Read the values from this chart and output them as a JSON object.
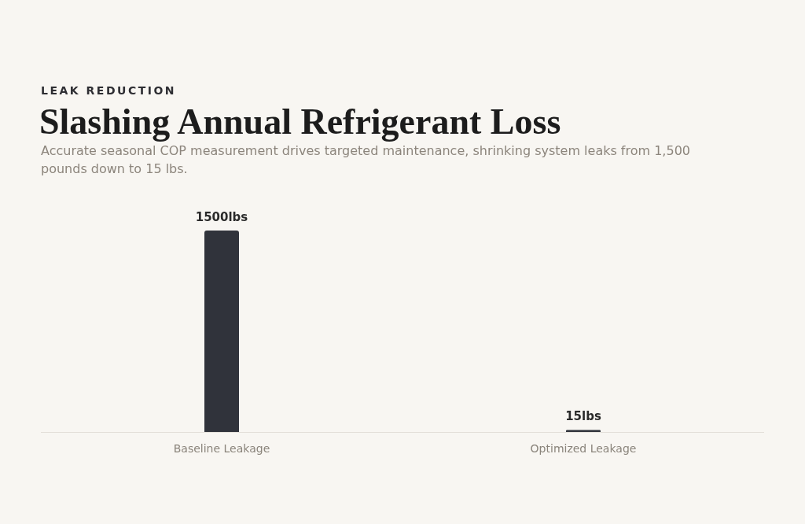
{
  "chart_data": {
    "type": "bar",
    "title": "Slashing Annual Refrigerant Loss",
    "subtitle": "Accurate seasonal COP measurement drives targeted maintenance, shrinking system leaks from 1,500 pounds down to 15 lbs.",
    "annotations": [
      "LEAK REDUCTION"
    ],
    "categories": [
      "Baseline Leakage",
      "Optimized Leakage"
    ],
    "values": [
      1500,
      15
    ],
    "value_labels": [
      "1500lbs",
      "15lbs"
    ],
    "color": "#30333b"
  }
}
